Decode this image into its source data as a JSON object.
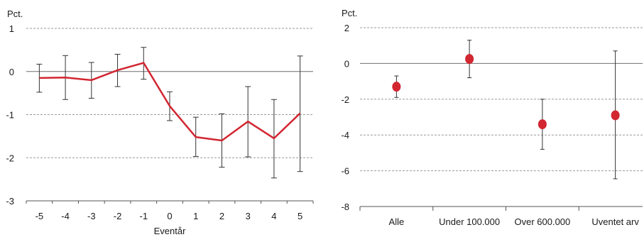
{
  "chart_data": [
    {
      "type": "line",
      "ylabel": "Pct.",
      "xlabel": "Eventår",
      "ylim": [
        -3,
        1
      ],
      "yticks": [
        1,
        0,
        -1,
        -2,
        -3
      ],
      "categories": [
        "-5",
        "-4",
        "-3",
        "-2",
        "-1",
        "0",
        "1",
        "2",
        "3",
        "4",
        "5"
      ],
      "series": [
        {
          "values": [
            -0.15,
            -0.14,
            -0.2,
            0.03,
            0.2,
            -0.8,
            -1.52,
            -1.6,
            -1.16,
            -1.55,
            -0.97
          ],
          "lower": [
            -0.48,
            -0.65,
            -0.62,
            -0.35,
            -0.18,
            -1.14,
            -1.97,
            -2.22,
            -1.98,
            -2.47,
            -2.32
          ],
          "upper": [
            0.17,
            0.37,
            0.21,
            0.4,
            0.56,
            -0.47,
            -1.06,
            -0.98,
            -0.35,
            -0.65,
            0.36
          ],
          "color": "#d22631"
        }
      ],
      "grid": "dashed horizontal gridlines",
      "zero_line": true
    },
    {
      "type": "scatter",
      "ylabel": "Pct.",
      "ylim": [
        -8,
        2
      ],
      "yticks": [
        2,
        0,
        -2,
        -4,
        -6,
        -8
      ],
      "categories": [
        "Alle",
        "Under 100.000",
        "Over 600.000",
        "Uventet arv"
      ],
      "series": [
        {
          "values": [
            -1.3,
            0.25,
            -3.4,
            -2.9
          ],
          "lower": [
            -1.9,
            -0.8,
            -4.8,
            -6.45
          ],
          "upper": [
            -0.7,
            1.3,
            -2.0,
            0.7
          ],
          "color": "#d22631"
        }
      ],
      "grid": "dashed horizontal gridlines",
      "zero_line": true
    }
  ]
}
